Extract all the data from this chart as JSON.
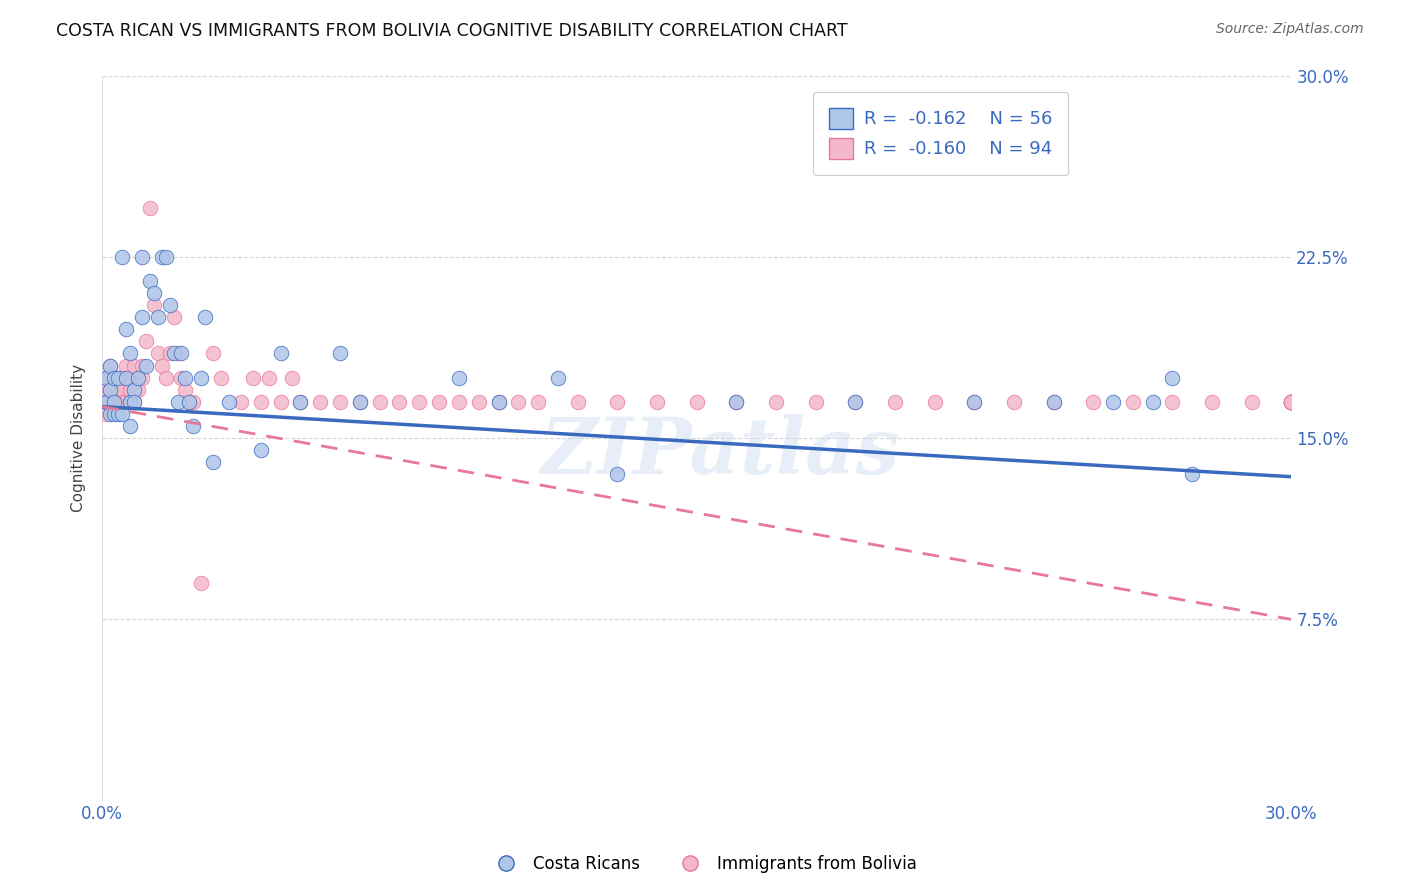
{
  "title": "COSTA RICAN VS IMMIGRANTS FROM BOLIVIA COGNITIVE DISABILITY CORRELATION CHART",
  "source": "Source: ZipAtlas.com",
  "ylabel": "Cognitive Disability",
  "x_min": 0.0,
  "x_max": 0.3,
  "y_min": 0.0,
  "y_max": 0.3,
  "legend_labels": [
    "Costa Ricans",
    "Immigrants from Bolivia"
  ],
  "legend_r_blue": "R = -0.162",
  "legend_n_blue": "N = 56",
  "legend_r_pink": "R = -0.160",
  "legend_n_pink": "N = 94",
  "color_blue": "#aec6e8",
  "color_pink": "#f4b8cb",
  "trendline_blue": "#3a6abf",
  "trendline_pink": "#e8779a",
  "text_blue": "#3a6abf",
  "background_color": "#ffffff",
  "watermark": "ZIPatlas",
  "cr_x": [
    0.001,
    0.001,
    0.002,
    0.002,
    0.002,
    0.003,
    0.003,
    0.003,
    0.004,
    0.004,
    0.005,
    0.005,
    0.006,
    0.006,
    0.007,
    0.007,
    0.007,
    0.008,
    0.008,
    0.009,
    0.01,
    0.01,
    0.011,
    0.012,
    0.013,
    0.014,
    0.015,
    0.016,
    0.017,
    0.018,
    0.019,
    0.02,
    0.021,
    0.022,
    0.023,
    0.025,
    0.026,
    0.028,
    0.032,
    0.04,
    0.045,
    0.05,
    0.06,
    0.065,
    0.09,
    0.1,
    0.115,
    0.13,
    0.16,
    0.19,
    0.22,
    0.24,
    0.255,
    0.265,
    0.27,
    0.275
  ],
  "cr_y": [
    0.175,
    0.165,
    0.18,
    0.17,
    0.16,
    0.175,
    0.165,
    0.16,
    0.175,
    0.16,
    0.225,
    0.16,
    0.195,
    0.175,
    0.185,
    0.165,
    0.155,
    0.17,
    0.165,
    0.175,
    0.225,
    0.2,
    0.18,
    0.215,
    0.21,
    0.2,
    0.225,
    0.225,
    0.205,
    0.185,
    0.165,
    0.185,
    0.175,
    0.165,
    0.155,
    0.175,
    0.2,
    0.14,
    0.165,
    0.145,
    0.185,
    0.165,
    0.185,
    0.165,
    0.175,
    0.165,
    0.175,
    0.135,
    0.165,
    0.165,
    0.165,
    0.165,
    0.165,
    0.165,
    0.175,
    0.135
  ],
  "bo_x": [
    0.001,
    0.001,
    0.001,
    0.001,
    0.001,
    0.002,
    0.002,
    0.002,
    0.002,
    0.002,
    0.003,
    0.003,
    0.003,
    0.003,
    0.004,
    0.004,
    0.004,
    0.005,
    0.005,
    0.005,
    0.005,
    0.006,
    0.006,
    0.006,
    0.007,
    0.007,
    0.007,
    0.008,
    0.008,
    0.009,
    0.009,
    0.01,
    0.01,
    0.011,
    0.012,
    0.013,
    0.014,
    0.015,
    0.016,
    0.017,
    0.018,
    0.019,
    0.02,
    0.021,
    0.022,
    0.023,
    0.025,
    0.028,
    0.03,
    0.035,
    0.038,
    0.04,
    0.042,
    0.045,
    0.048,
    0.05,
    0.055,
    0.06,
    0.065,
    0.07,
    0.075,
    0.08,
    0.085,
    0.09,
    0.095,
    0.1,
    0.105,
    0.11,
    0.12,
    0.13,
    0.14,
    0.15,
    0.16,
    0.17,
    0.18,
    0.19,
    0.2,
    0.21,
    0.22,
    0.23,
    0.24,
    0.25,
    0.26,
    0.27,
    0.28,
    0.29,
    0.3,
    0.3,
    0.3,
    0.3,
    0.3,
    0.3,
    0.3,
    0.3
  ],
  "bo_y": [
    0.175,
    0.165,
    0.17,
    0.165,
    0.16,
    0.18,
    0.175,
    0.165,
    0.17,
    0.165,
    0.175,
    0.165,
    0.17,
    0.165,
    0.175,
    0.165,
    0.17,
    0.175,
    0.165,
    0.17,
    0.165,
    0.18,
    0.165,
    0.175,
    0.17,
    0.165,
    0.175,
    0.18,
    0.165,
    0.175,
    0.17,
    0.18,
    0.175,
    0.19,
    0.245,
    0.205,
    0.185,
    0.18,
    0.175,
    0.185,
    0.2,
    0.185,
    0.175,
    0.17,
    0.165,
    0.165,
    0.09,
    0.185,
    0.175,
    0.165,
    0.175,
    0.165,
    0.175,
    0.165,
    0.175,
    0.165,
    0.165,
    0.165,
    0.165,
    0.165,
    0.165,
    0.165,
    0.165,
    0.165,
    0.165,
    0.165,
    0.165,
    0.165,
    0.165,
    0.165,
    0.165,
    0.165,
    0.165,
    0.165,
    0.165,
    0.165,
    0.165,
    0.165,
    0.165,
    0.165,
    0.165,
    0.165,
    0.165,
    0.165,
    0.165,
    0.165,
    0.165,
    0.165,
    0.165,
    0.165,
    0.165,
    0.165,
    0.165,
    0.165
  ],
  "cr_trend_x0": 0.0,
  "cr_trend_y0": 0.163,
  "cr_trend_x1": 0.3,
  "cr_trend_y1": 0.134,
  "bo_trend_x0": 0.0,
  "bo_trend_y0": 0.163,
  "bo_trend_x1": 0.3,
  "bo_trend_y1": 0.075
}
